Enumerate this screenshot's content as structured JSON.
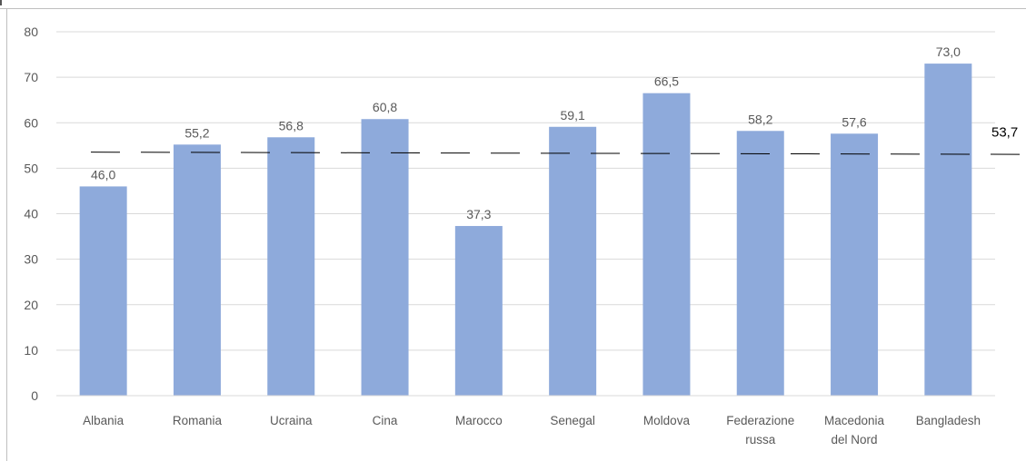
{
  "chart_data": {
    "type": "bar",
    "categories": [
      "Albania",
      "Romania",
      "Ucraina",
      "Cina",
      "Marocco",
      "Senegal",
      "Moldova",
      "Federazione russa",
      "Macedonia del Nord",
      "Bangladesh"
    ],
    "category_lines": [
      [
        "Albania"
      ],
      [
        "Romania"
      ],
      [
        "Ucraina"
      ],
      [
        "Cina"
      ],
      [
        "Marocco"
      ],
      [
        "Senegal"
      ],
      [
        "Moldova"
      ],
      [
        "Federazione",
        "russa"
      ],
      [
        "Macedonia",
        "del Nord"
      ],
      [
        "Bangladesh"
      ]
    ],
    "values": [
      46.0,
      55.2,
      56.8,
      60.8,
      37.3,
      59.1,
      66.5,
      58.2,
      57.6,
      73.0
    ],
    "value_labels": [
      "46,0",
      "55,2",
      "56,8",
      "60,8",
      "37,3",
      "59,1",
      "66,5",
      "58,2",
      "57,6",
      "73,0"
    ],
    "reference_line": {
      "value": 53.7,
      "label": "53,7",
      "style": "dashed"
    },
    "ylim": [
      0,
      80
    ],
    "yticks": [
      0,
      10,
      20,
      30,
      40,
      50,
      60,
      70,
      80
    ],
    "ytick_labels": [
      "0",
      "10",
      "20",
      "30",
      "40",
      "50",
      "60",
      "70",
      "80"
    ],
    "grid": true,
    "legend": "none",
    "colors": {
      "bar": "#8eaadb",
      "grid": "#d9d9d9",
      "text": "#595959",
      "reference_line": "#000000"
    }
  }
}
